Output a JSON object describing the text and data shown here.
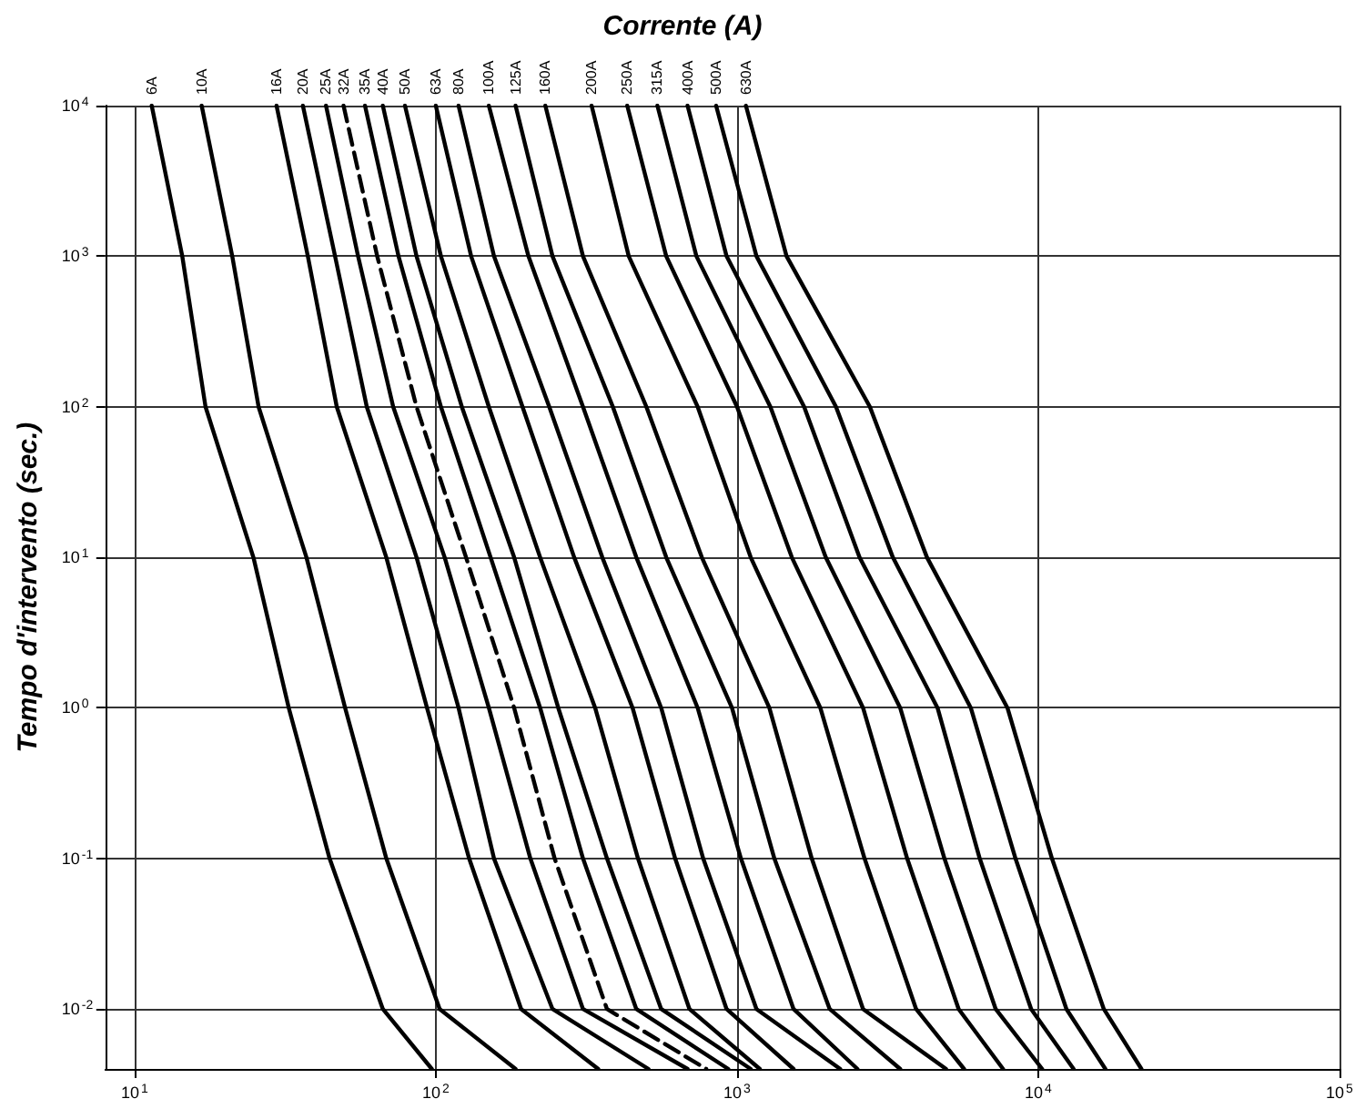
{
  "chart_data": {
    "type": "line",
    "xlabel": "Corrente (A)",
    "ylabel": "Tempo d'intervento (sec.)",
    "log": "xy",
    "grid": true,
    "legend": false,
    "marker": "none",
    "line_style": "solid",
    "xlim": [
      8,
      100000
    ],
    "ylim": [
      0.004,
      10000
    ],
    "xticks": [
      {
        "value": 10,
        "label": "10$^{1}$"
      },
      {
        "value": 100,
        "label": "10$^{2}$"
      },
      {
        "value": 1000,
        "label": "10$^{3}$"
      },
      {
        "value": 10000,
        "label": "10$^{4}$"
      },
      {
        "value": 100000,
        "label": "10$^{5}$"
      }
    ],
    "yticks": [
      {
        "value": 0.01,
        "label": "10$^{-2}$"
      },
      {
        "value": 0.1,
        "label": "10$^{-1}$"
      },
      {
        "value": 1,
        "label": "10$^{0}$"
      },
      {
        "value": 10,
        "label": "10$^{1}$"
      },
      {
        "value": 100,
        "label": "10$^{2}$"
      },
      {
        "value": 1000,
        "label": "10$^{3}$"
      },
      {
        "value": 10000,
        "label": "10$^{4}$"
      }
    ],
    "series": [
      {
        "name": "6A",
        "color": "#000000",
        "x": [
          11.4,
          14.4,
          17.2,
          24.8,
          32.5,
          44.4,
          66.7,
          97
        ],
        "values": [
          10000,
          1000,
          100,
          10,
          1,
          0.1,
          0.01,
          0.004
        ]
      },
      {
        "name": "10A",
        "color": "#000000",
        "x": [
          16.7,
          21.1,
          25.8,
          37.2,
          50,
          68.5,
          103,
          184
        ],
        "values": [
          10000,
          1000,
          100,
          10,
          1,
          0.1,
          0.01,
          0.004
        ]
      },
      {
        "name": "16A",
        "color": "#000000",
        "x": [
          29.6,
          37.6,
          46.9,
          68.5,
          93.5,
          129,
          192,
          346
        ],
        "values": [
          10000,
          1000,
          100,
          10,
          1,
          0.1,
          0.01,
          0.004
        ]
      },
      {
        "name": "20A",
        "color": "#000000",
        "x": [
          36.2,
          46.3,
          59,
          86.3,
          119,
          156,
          244,
          508
        ],
        "values": [
          10000,
          1000,
          100,
          10,
          1,
          0.1,
          0.01,
          0.004
        ]
      },
      {
        "name": "25A",
        "color": "#000000",
        "x": [
          43.2,
          55.2,
          72.2,
          107,
          150,
          206,
          308,
          685
        ],
        "values": [
          10000,
          1000,
          100,
          10,
          1,
          0.1,
          0.01,
          0.004
        ]
      },
      {
        "name": "32A",
        "color": "#000000",
        "line_style": "dashed",
        "x": [
          49.4,
          63.9,
          86.3,
          126,
          182,
          248,
          370,
          790
        ],
        "values": [
          10000,
          1000,
          100,
          10,
          1,
          0.1,
          0.01,
          0.004
        ]
      },
      {
        "name": "35A",
        "color": "#000000",
        "x": [
          58.2,
          75.2,
          104,
          152,
          222,
          308,
          463,
          935
        ],
        "values": [
          10000,
          1000,
          100,
          10,
          1,
          0.1,
          0.01,
          0.004
        ]
      },
      {
        "name": "40A",
        "color": "#000000",
        "x": [
          66.7,
          86.3,
          122,
          182,
          255,
          370,
          560,
          1110
        ],
        "values": [
          10000,
          1000,
          100,
          10,
          1,
          0.1,
          0.01,
          0.004
        ]
      },
      {
        "name": "50A",
        "color": "#000000",
        "x": [
          79,
          104,
          150,
          222,
          338,
          469,
          695,
          1190
        ],
        "values": [
          10000,
          1000,
          100,
          10,
          1,
          0.1,
          0.01,
          0.004
        ]
      },
      {
        "name": "63A",
        "color": "#000000",
        "x": [
          100,
          131,
          194,
          288,
          450,
          623,
          923,
          1540
        ],
        "values": [
          10000,
          1000,
          100,
          10,
          1,
          0.1,
          0.01,
          0.004
        ]
      },
      {
        "name": "80A",
        "color": "#000000",
        "x": [
          119,
          156,
          238,
          357,
          560,
          772,
          1160,
          2200
        ],
        "values": [
          10000,
          1000,
          100,
          10,
          1,
          0.1,
          0.01,
          0.004
        ]
      },
      {
        "name": "100A",
        "color": "#000000",
        "x": [
          150,
          203,
          308,
          463,
          740,
          1030,
          1540,
          2510
        ],
        "values": [
          10000,
          1000,
          100,
          10,
          1,
          0.1,
          0.01,
          0.004
        ]
      },
      {
        "name": "125A",
        "color": "#000000",
        "x": [
          184,
          244,
          387,
          582,
          962,
          1330,
          2030,
          3480
        ],
        "values": [
          10000,
          1000,
          100,
          10,
          1,
          0.1,
          0.01,
          0.004
        ]
      },
      {
        "name": "160A",
        "color": "#000000",
        "x": [
          231,
          308,
          500,
          764,
          1280,
          1770,
          2620,
          4940
        ],
        "values": [
          10000,
          1000,
          100,
          10,
          1,
          0.1,
          0.01,
          0.004
        ]
      },
      {
        "name": "200A",
        "color": "#000000",
        "x": [
          329,
          437,
          740,
          1110,
          1890,
          2650,
          3930,
          5670
        ],
        "values": [
          10000,
          1000,
          100,
          10,
          1,
          0.1,
          0.01,
          0.004
        ]
      },
      {
        "name": "250A",
        "color": "#000000",
        "x": [
          432,
          582,
          1000,
          1520,
          2620,
          3670,
          5440,
          7640
        ],
        "values": [
          10000,
          1000,
          100,
          10,
          1,
          0.1,
          0.01,
          0.004
        ]
      },
      {
        "name": "315A",
        "color": "#000000",
        "x": [
          544,
          733,
          1290,
          1970,
          3480,
          4880,
          7220,
          10300
        ],
        "values": [
          10000,
          1000,
          100,
          10,
          1,
          0.1,
          0.01,
          0.004
        ]
      },
      {
        "name": "400A",
        "color": "#000000",
        "x": [
          685,
          923,
          1670,
          2550,
          4630,
          6390,
          9470,
          13100
        ],
        "values": [
          10000,
          1000,
          100,
          10,
          1,
          0.1,
          0.01,
          0.004
        ]
      },
      {
        "name": "500A",
        "color": "#000000",
        "x": [
          852,
          1160,
          2130,
          3290,
          5970,
          8400,
          12400,
          16700
        ],
        "values": [
          10000,
          1000,
          100,
          10,
          1,
          0.1,
          0.01,
          0.004
        ]
      },
      {
        "name": "630A",
        "color": "#000000",
        "x": [
          1070,
          1460,
          2760,
          4270,
          7900,
          11100,
          16500,
          22000
        ],
        "values": [
          10000,
          1000,
          100,
          10,
          1,
          0.1,
          0.01,
          0.004
        ]
      }
    ]
  }
}
